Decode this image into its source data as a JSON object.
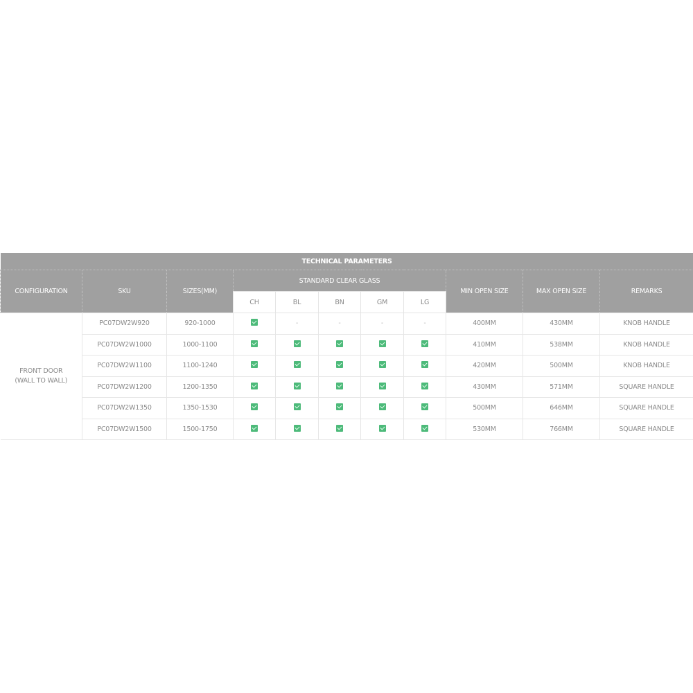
{
  "title": "TECHNICAL PARAMETERS",
  "headers": {
    "configuration": "CONFIGURATION",
    "sku": "SKU",
    "sizes": "SIZES(MM)",
    "glass_group": "STANDARD CLEAR GLASS",
    "glass": [
      "CH",
      "BL",
      "BN",
      "GM",
      "LG"
    ],
    "min_open": "MIN OPEN SIZE",
    "max_open": "MAX OPEN SIZE",
    "remarks": "REMARKS"
  },
  "configuration": [
    "FRONT DOOR",
    "(WALL TO WALL)"
  ],
  "rows": [
    {
      "sku": "PC07DW2W920",
      "size": "920-1000",
      "glass": [
        true,
        false,
        false,
        false,
        false
      ],
      "min": "400MM",
      "max": "430MM",
      "remarks": "KNOB HANDLE"
    },
    {
      "sku": "PC07DW2W1000",
      "size": "1000-1100",
      "glass": [
        true,
        true,
        true,
        true,
        true
      ],
      "min": "410MM",
      "max": "538MM",
      "remarks": "KNOB HANDLE"
    },
    {
      "sku": "PC07DW2W1100",
      "size": "1100-1240",
      "glass": [
        true,
        true,
        true,
        true,
        true
      ],
      "min": "420MM",
      "max": "500MM",
      "remarks": "KNOB HANDLE"
    },
    {
      "sku": "PC07DW2W1200",
      "size": "1200-1350",
      "glass": [
        true,
        true,
        true,
        true,
        true
      ],
      "min": "430MM",
      "max": "571MM",
      "remarks": "SQUARE HANDLE"
    },
    {
      "sku": "PC07DW2W1350",
      "size": "1350-1530",
      "glass": [
        true,
        true,
        true,
        true,
        true
      ],
      "min": "500MM",
      "max": "646MM",
      "remarks": "SQUARE HANDLE"
    },
    {
      "sku": "PC07DW2W1500",
      "size": "1500-1750",
      "glass": [
        true,
        true,
        true,
        true,
        true
      ],
      "min": "530MM",
      "max": "766MM",
      "remarks": "SQUARE HANDLE"
    }
  ],
  "unavailable_mark": "-",
  "colors": {
    "header_bg": "#a0a0a0",
    "check_green": "#4dba7a"
  }
}
